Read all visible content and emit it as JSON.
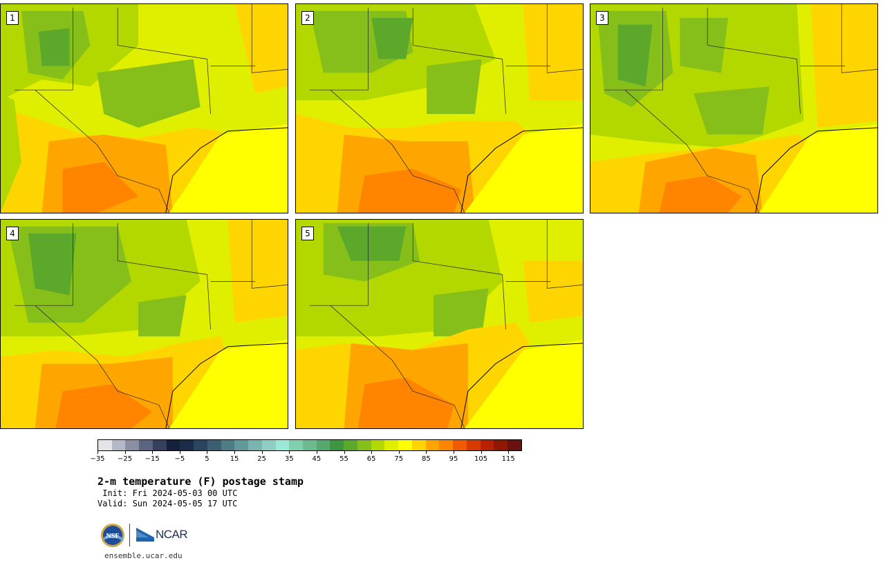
{
  "panels": [
    {
      "label": "1"
    },
    {
      "label": "2"
    },
    {
      "label": "3"
    },
    {
      "label": "4"
    },
    {
      "label": "5"
    }
  ],
  "colorbar": {
    "colors": [
      "#e3e4e8",
      "#b5b8c6",
      "#8a8fa3",
      "#5c6580",
      "#353f5e",
      "#16203a",
      "#1b2c4a",
      "#2a4560",
      "#3b5e72",
      "#4e7d86",
      "#62999a",
      "#79b4b1",
      "#8fcdc4",
      "#9ce8d6",
      "#80d0b0",
      "#6bbb8e",
      "#56a86f",
      "#3e9540",
      "#5ba82a",
      "#86bf1a",
      "#b3d800",
      "#e0ef00",
      "#ffff00",
      "#ffd500",
      "#ffa500",
      "#ff8400",
      "#f05a00",
      "#d63a00",
      "#b82000",
      "#8f1800",
      "#6b1010"
    ],
    "tick_labels": [
      "−35",
      "−25",
      "−15",
      "−5",
      "5",
      "15",
      "25",
      "35",
      "45",
      "55",
      "65",
      "75",
      "85",
      "95",
      "105",
      "115"
    ]
  },
  "title": "2-m temperature (F) postage stamp",
  "init": " Init: Fri 2024-05-03 00 UTC",
  "valid": "Valid: Sun 2024-05-05 17 UTC",
  "logos": {
    "nsf": "nsf-logo",
    "ncar_text": "NCAR"
  },
  "website": "ensemble.ucar.edu"
}
